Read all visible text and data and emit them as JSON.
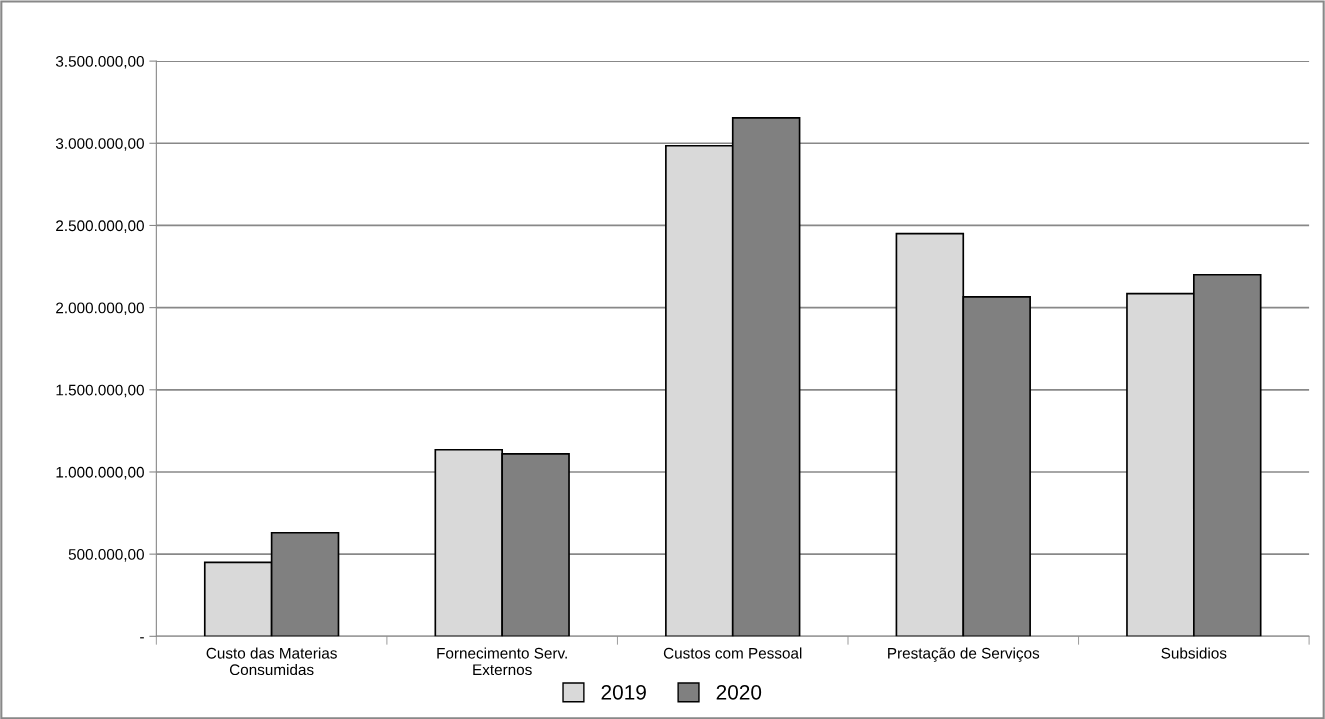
{
  "chart_data": {
    "type": "bar",
    "categories": [
      "Custo das Materias\nConsumidas",
      "Fornecimento Serv.\nExternos",
      "Custos com Pessoal",
      "Prestação de Serviços",
      "Subsidios"
    ],
    "series": [
      {
        "name": "2019",
        "color": "#d9d9d9",
        "values": [
          450000,
          1135000,
          2985000,
          2450000,
          2085000
        ]
      },
      {
        "name": "2020",
        "color": "#808080",
        "values": [
          630000,
          1110000,
          3155000,
          2065000,
          2200000
        ]
      }
    ],
    "ylim": [
      0,
      3500000
    ],
    "yticks": [
      {
        "value": 0,
        "label": "-"
      },
      {
        "value": 500000,
        "label": "500.000,00"
      },
      {
        "value": 1000000,
        "label": "1.000.000,00"
      },
      {
        "value": 1500000,
        "label": "1.500.000,00"
      },
      {
        "value": 2000000,
        "label": "2.000.000,00"
      },
      {
        "value": 2500000,
        "label": "2.500.000,00"
      },
      {
        "value": 3000000,
        "label": "3.000.000,00"
      },
      {
        "value": 3500000,
        "label": "3.500.000,00"
      }
    ],
    "grid": "y",
    "legend": "bottom"
  }
}
